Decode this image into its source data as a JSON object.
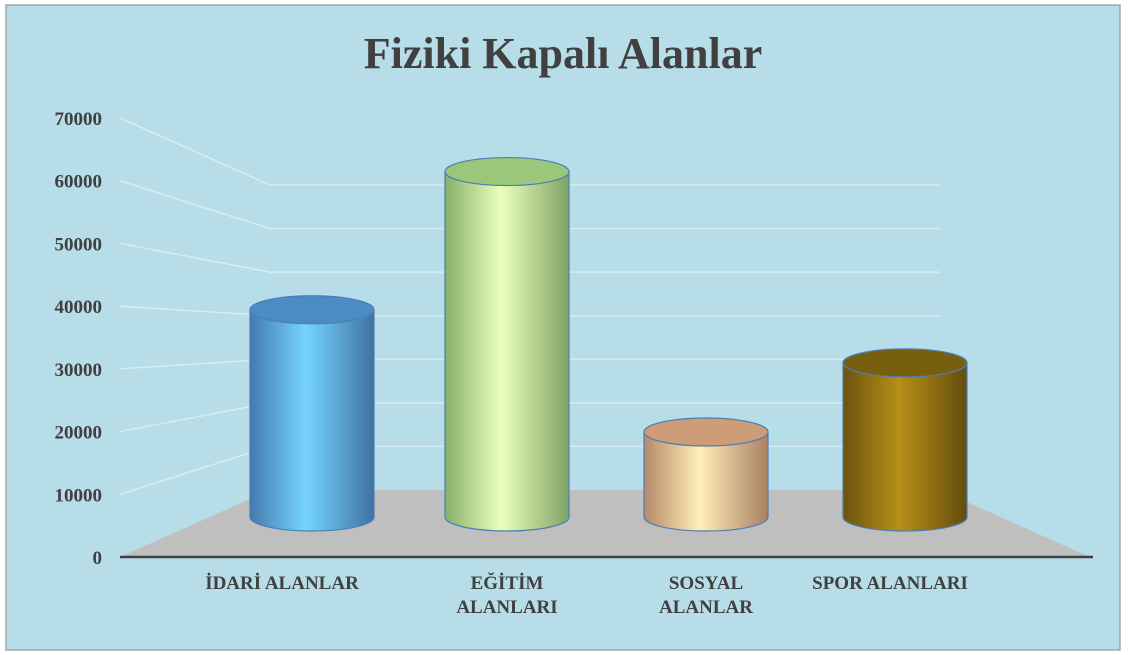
{
  "chart_data": {
    "type": "bar",
    "title": "Fiziki Kapalı Alanlar",
    "categories": [
      "İDARİ ALANLAR",
      "EĞİTİM ALANLARI",
      "SOSYAL ALANLAR",
      "SPOR ALANLARI"
    ],
    "values": [
      39000,
      65000,
      16000,
      29000
    ],
    "colors": [
      "#5ba3e8",
      "#b5ea90",
      "#f3b78d",
      "#8d6e12"
    ],
    "ylim": [
      0,
      70000
    ],
    "yticks": [
      0,
      10000,
      20000,
      30000,
      40000,
      50000,
      60000,
      70000
    ],
    "grid": true
  }
}
